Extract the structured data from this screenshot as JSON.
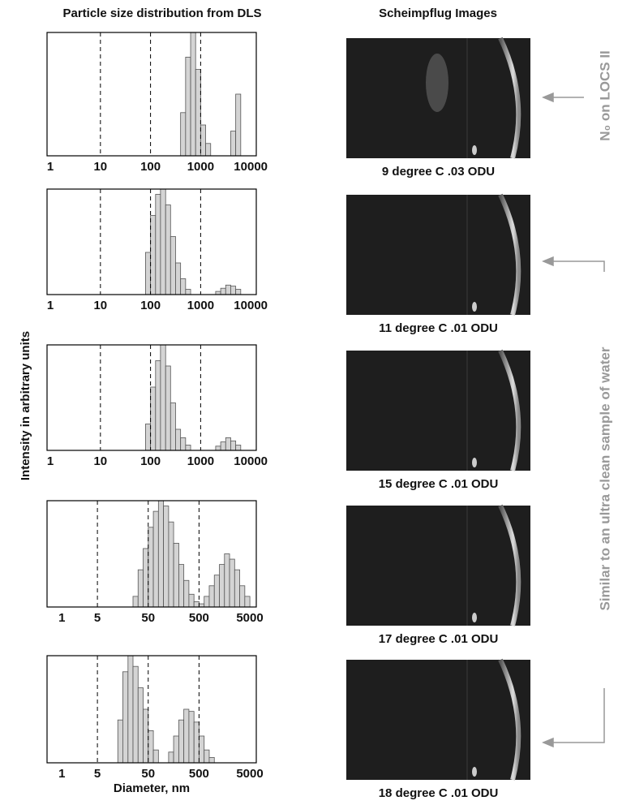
{
  "title": "Particle size distribution from DLS",
  "images_title": "Scheimpflug Images",
  "y_label": "Intensity in arbitrary units",
  "chart_data": [
    {
      "type": "histogram",
      "log_x": true,
      "color": "#d4d4d4",
      "grid": "dashed",
      "xlim": [
        0.86,
        12900
      ],
      "xticks": [
        1,
        10,
        100,
        1000,
        10000
      ],
      "ylim": [
        0,
        100
      ],
      "bins": [
        398,
        501,
        631,
        794,
        1000,
        1259,
        1585,
        1995,
        2512,
        3162,
        3981,
        5012,
        6310
      ],
      "values": [
        35,
        80,
        100,
        70,
        25,
        10,
        0,
        0,
        0,
        0,
        20,
        50
      ]
    },
    {
      "type": "histogram",
      "log_x": true,
      "color": "#d4d4d4",
      "grid": "dashed",
      "xlim": [
        0.86,
        12900
      ],
      "xticks": [
        1,
        10,
        100,
        1000,
        10000
      ],
      "ylim": [
        0,
        100
      ],
      "bins": [
        79.4,
        100,
        126,
        158,
        200,
        251,
        316,
        398,
        501,
        631,
        794,
        1000,
        1259,
        1585,
        1995,
        2512,
        3162,
        3981,
        5012,
        6310,
        7943
      ],
      "values": [
        40,
        75,
        95,
        100,
        85,
        55,
        30,
        15,
        5,
        0,
        0,
        0,
        0,
        0,
        3,
        6,
        9,
        8,
        5,
        0
      ]
    },
    {
      "type": "histogram",
      "log_x": true,
      "color": "#d4d4d4",
      "grid": "dashed",
      "xlim": [
        0.86,
        12900
      ],
      "xticks": [
        1,
        10,
        100,
        1000,
        10000
      ],
      "ylim": [
        0,
        100
      ],
      "bins": [
        79.4,
        100,
        126,
        158,
        200,
        251,
        316,
        398,
        501,
        631,
        794,
        1000,
        1259,
        1585,
        1995,
        2512,
        3162,
        3981,
        5012,
        6310,
        7943
      ],
      "values": [
        25,
        60,
        85,
        100,
        80,
        45,
        20,
        12,
        5,
        0,
        0,
        0,
        0,
        0,
        4,
        8,
        12,
        9,
        5,
        0
      ]
    },
    {
      "type": "histogram",
      "log_x": true,
      "color": "#d4d4d4",
      "grid": "dashed",
      "xlim": [
        0.51,
        6700
      ],
      "xticks": [
        1,
        5,
        50,
        500,
        5000
      ],
      "ylim": [
        0,
        100
      ],
      "bins": [
        25.1,
        31.6,
        39.8,
        50.1,
        63.1,
        79.4,
        100,
        126,
        158,
        200,
        251,
        316,
        398,
        501,
        631,
        794,
        1000,
        1259,
        1585,
        1995,
        2512,
        3162,
        3981,
        5012
      ],
      "values": [
        10,
        35,
        55,
        75,
        90,
        100,
        95,
        80,
        60,
        40,
        25,
        12,
        5,
        3,
        10,
        20,
        30,
        40,
        50,
        45,
        35,
        20,
        10
      ]
    },
    {
      "type": "histogram",
      "log_x": true,
      "color": "#d4d4d4",
      "grid": "dashed",
      "xlim": [
        0.51,
        6700
      ],
      "xticks": [
        1,
        5,
        50,
        500,
        5000
      ],
      "ylim": [
        0,
        100
      ],
      "xlabel": "Diameter, nm",
      "bins": [
        12.6,
        15.8,
        20,
        25.1,
        31.6,
        39.8,
        50.1,
        63.1,
        79.4,
        100,
        126,
        158,
        200,
        251,
        316,
        398,
        501,
        631,
        794,
        1000
      ],
      "values": [
        40,
        85,
        100,
        90,
        70,
        50,
        30,
        12,
        0,
        0,
        10,
        25,
        40,
        50,
        48,
        38,
        25,
        12,
        5
      ]
    }
  ],
  "images": [
    {
      "caption": "9 degree C .03 ODU"
    },
    {
      "caption": "11 degree C .01 ODU"
    },
    {
      "caption": "15 degree C .01 ODU"
    },
    {
      "caption": "17 degree C .01 ODU"
    },
    {
      "caption": "18 degree C .01 ODU"
    }
  ],
  "annotations": [
    "N₀ on LOCS II",
    "Similar to an ultra clean sample of water"
  ]
}
